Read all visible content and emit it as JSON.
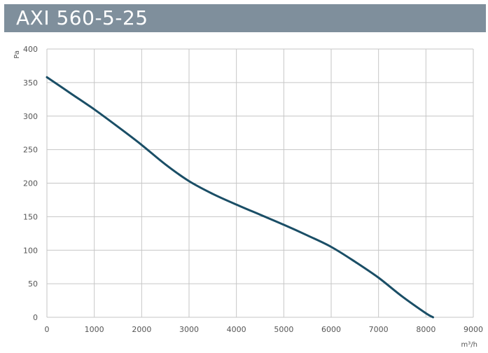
{
  "header": {
    "title": "AXI 560-5-25"
  },
  "chart_data": {
    "type": "line",
    "title": "AXI 560-5-25",
    "xlabel": "m³/h",
    "ylabel": "Pa",
    "xlim": [
      0,
      9000
    ],
    "ylim": [
      0,
      400
    ],
    "xticks": [
      0,
      1000,
      2000,
      3000,
      4000,
      5000,
      6000,
      7000,
      8000,
      9000
    ],
    "yticks": [
      0,
      50,
      100,
      150,
      200,
      250,
      300,
      350,
      400
    ],
    "grid": true,
    "legend": "none",
    "series": [
      {
        "color": "#1a4e66",
        "x": [
          0,
          500,
          1000,
          1500,
          2000,
          2500,
          3000,
          3500,
          4000,
          4500,
          5000,
          5500,
          6000,
          6500,
          7000,
          7500,
          8000,
          8150
        ],
        "y": [
          358,
          334,
          310,
          284,
          257,
          228,
          203,
          184,
          168,
          153,
          138,
          122,
          105,
          83,
          59,
          31,
          6,
          0
        ]
      }
    ]
  }
}
